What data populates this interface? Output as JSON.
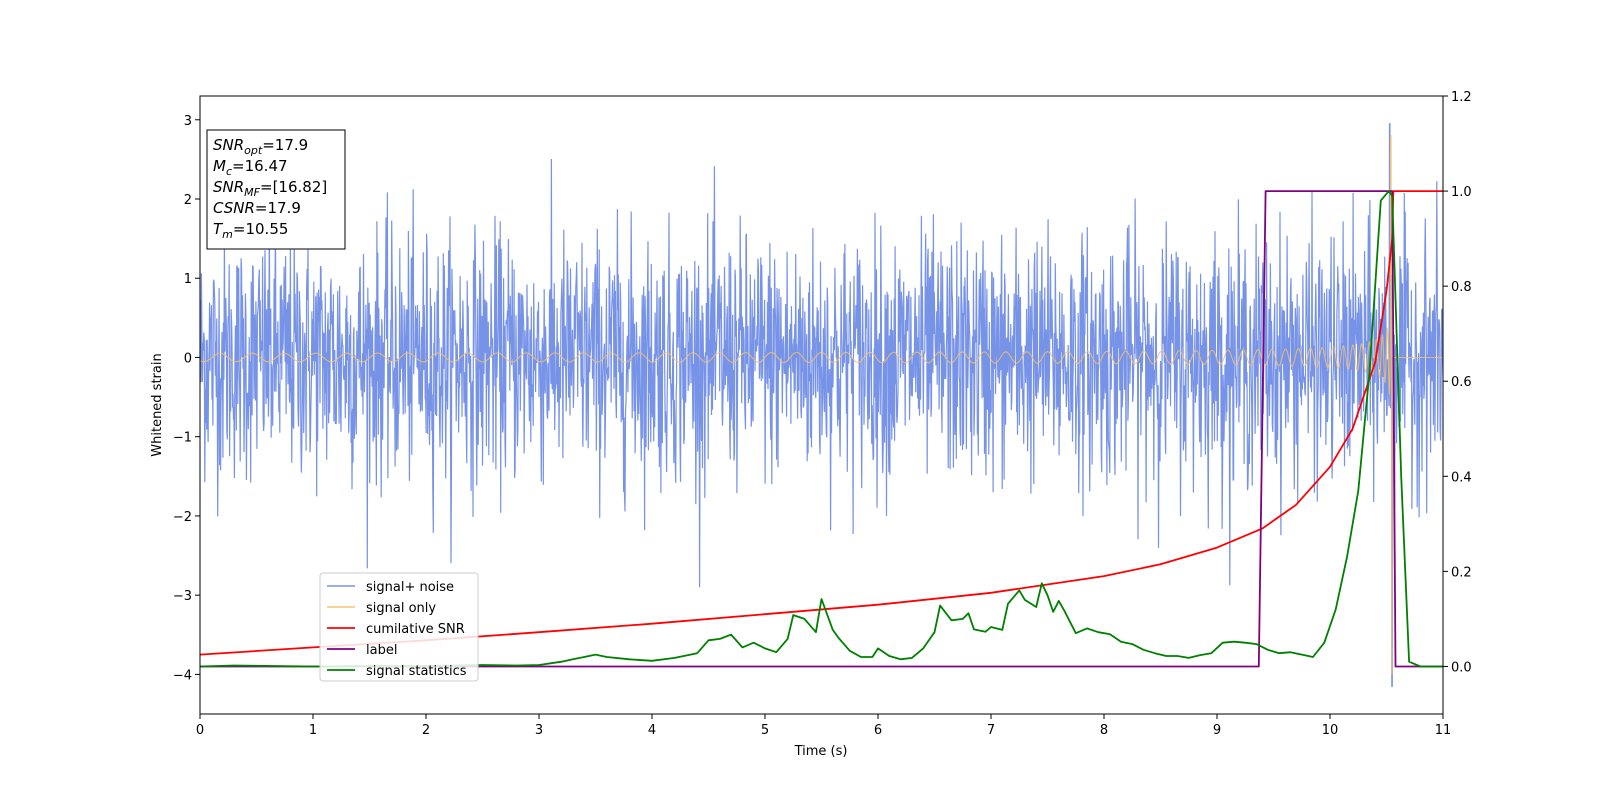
{
  "chart_data": {
    "type": "line",
    "xlabel": "Time (s)",
    "ylabel": "Whitened strain",
    "xlim": [
      0,
      11
    ],
    "ylim": [
      -4.5,
      3.3
    ],
    "y2lim": [
      -0.1,
      1.2
    ],
    "x_ticks": [
      "0",
      "1",
      "2",
      "3",
      "4",
      "5",
      "6",
      "7",
      "8",
      "9",
      "10",
      "11"
    ],
    "y_ticks": [
      "−4",
      "−3",
      "−2",
      "−1",
      "0",
      "1",
      "2",
      "3"
    ],
    "y2_ticks": [
      "0.0",
      "0.2",
      "0.4",
      "0.6",
      "0.8",
      "1.0",
      "1.2"
    ],
    "legend_position": "lower-left",
    "info_box": {
      "position": "top-left",
      "lines": [
        {
          "sym": "SNR",
          "sub": "opt",
          "val": "=17.9"
        },
        {
          "sym": "M",
          "sub": "c",
          "val": "=16.47"
        },
        {
          "sym": "SNR",
          "sub": "MF",
          "val": "=[16.82]"
        },
        {
          "sym": "CSNR",
          "sub": "",
          "val": "=17.9"
        },
        {
          "sym": "T",
          "sub": "m",
          "val": "=10.55"
        }
      ]
    },
    "series": [
      {
        "name": "signal+ noise",
        "color": "#6b8ae6",
        "axis": "left",
        "kind": "noise",
        "noise_sigma": 0.85,
        "x_range": [
          0,
          11
        ],
        "samples": 2600,
        "peak": [
          10.53,
          2.95
        ],
        "trough": [
          10.55,
          -4.15
        ]
      },
      {
        "name": "signal only",
        "color": "#f5c06a",
        "axis": "left",
        "kind": "chirp",
        "merger_time": 10.55,
        "amplitude_at_merger": 2.8,
        "amplitude_min_at_merger": -4.0,
        "base_amplitude": 0.03
      },
      {
        "name": "cumilative SNR",
        "color": "#ff0000",
        "axis": "right",
        "x": [
          0,
          1,
          2,
          3,
          4,
          5,
          6,
          7,
          8,
          8.5,
          9,
          9.4,
          9.7,
          10,
          10.2,
          10.4,
          10.5,
          10.55,
          10.56,
          11
        ],
        "y": [
          0.025,
          0.04,
          0.055,
          0.072,
          0.09,
          0.11,
          0.13,
          0.155,
          0.19,
          0.215,
          0.25,
          0.29,
          0.34,
          0.42,
          0.5,
          0.64,
          0.79,
          0.9,
          1.0,
          1.0
        ]
      },
      {
        "name": "label",
        "color": "#800080",
        "axis": "right",
        "x": [
          0,
          9.37,
          9.43,
          10.55,
          10.58,
          11
        ],
        "y": [
          0,
          0,
          1,
          1,
          0,
          0
        ]
      },
      {
        "name": "signal statistics",
        "color": "#008000",
        "axis": "right",
        "x": [
          0,
          0.3,
          1,
          1.5,
          2,
          2.5,
          2.8,
          3,
          3.2,
          3.3,
          3.4,
          3.5,
          3.6,
          3.8,
          4,
          4.2,
          4.4,
          4.5,
          4.6,
          4.7,
          4.8,
          4.9,
          5,
          5.1,
          5.2,
          5.25,
          5.35,
          5.45,
          5.5,
          5.6,
          5.65,
          5.75,
          5.85,
          5.95,
          6,
          6.1,
          6.2,
          6.3,
          6.4,
          6.5,
          6.55,
          6.65,
          6.75,
          6.8,
          6.85,
          6.95,
          7.0,
          7.1,
          7.15,
          7.25,
          7.3,
          7.4,
          7.45,
          7.5,
          7.55,
          7.6,
          7.65,
          7.75,
          7.85,
          7.95,
          8.05,
          8.15,
          8.25,
          8.35,
          8.45,
          8.55,
          8.65,
          8.75,
          8.85,
          8.95,
          9.05,
          9.15,
          9.25,
          9.35,
          9.45,
          9.55,
          9.65,
          9.75,
          9.85,
          9.95,
          10.05,
          10.15,
          10.25,
          10.35,
          10.45,
          10.52,
          10.55,
          10.63,
          10.7,
          10.8,
          11
        ],
        "y": [
          0.0,
          0.002,
          0.0,
          0.001,
          0.001,
          0.003,
          0.002,
          0.003,
          0.01,
          0.015,
          0.02,
          0.025,
          0.02,
          0.015,
          0.012,
          0.018,
          0.028,
          0.055,
          0.058,
          0.067,
          0.04,
          0.05,
          0.038,
          0.03,
          0.058,
          0.108,
          0.1,
          0.072,
          0.142,
          0.077,
          0.06,
          0.033,
          0.02,
          0.02,
          0.038,
          0.022,
          0.015,
          0.018,
          0.038,
          0.072,
          0.128,
          0.097,
          0.1,
          0.112,
          0.078,
          0.073,
          0.083,
          0.077,
          0.132,
          0.16,
          0.14,
          0.125,
          0.175,
          0.15,
          0.115,
          0.138,
          0.117,
          0.07,
          0.08,
          0.072,
          0.068,
          0.052,
          0.047,
          0.035,
          0.028,
          0.022,
          0.022,
          0.018,
          0.024,
          0.028,
          0.05,
          0.052,
          0.05,
          0.047,
          0.035,
          0.028,
          0.03,
          0.025,
          0.02,
          0.05,
          0.12,
          0.23,
          0.37,
          0.62,
          0.98,
          1.0,
          0.99,
          0.4,
          0.01,
          0.0,
          0.0
        ]
      }
    ]
  }
}
